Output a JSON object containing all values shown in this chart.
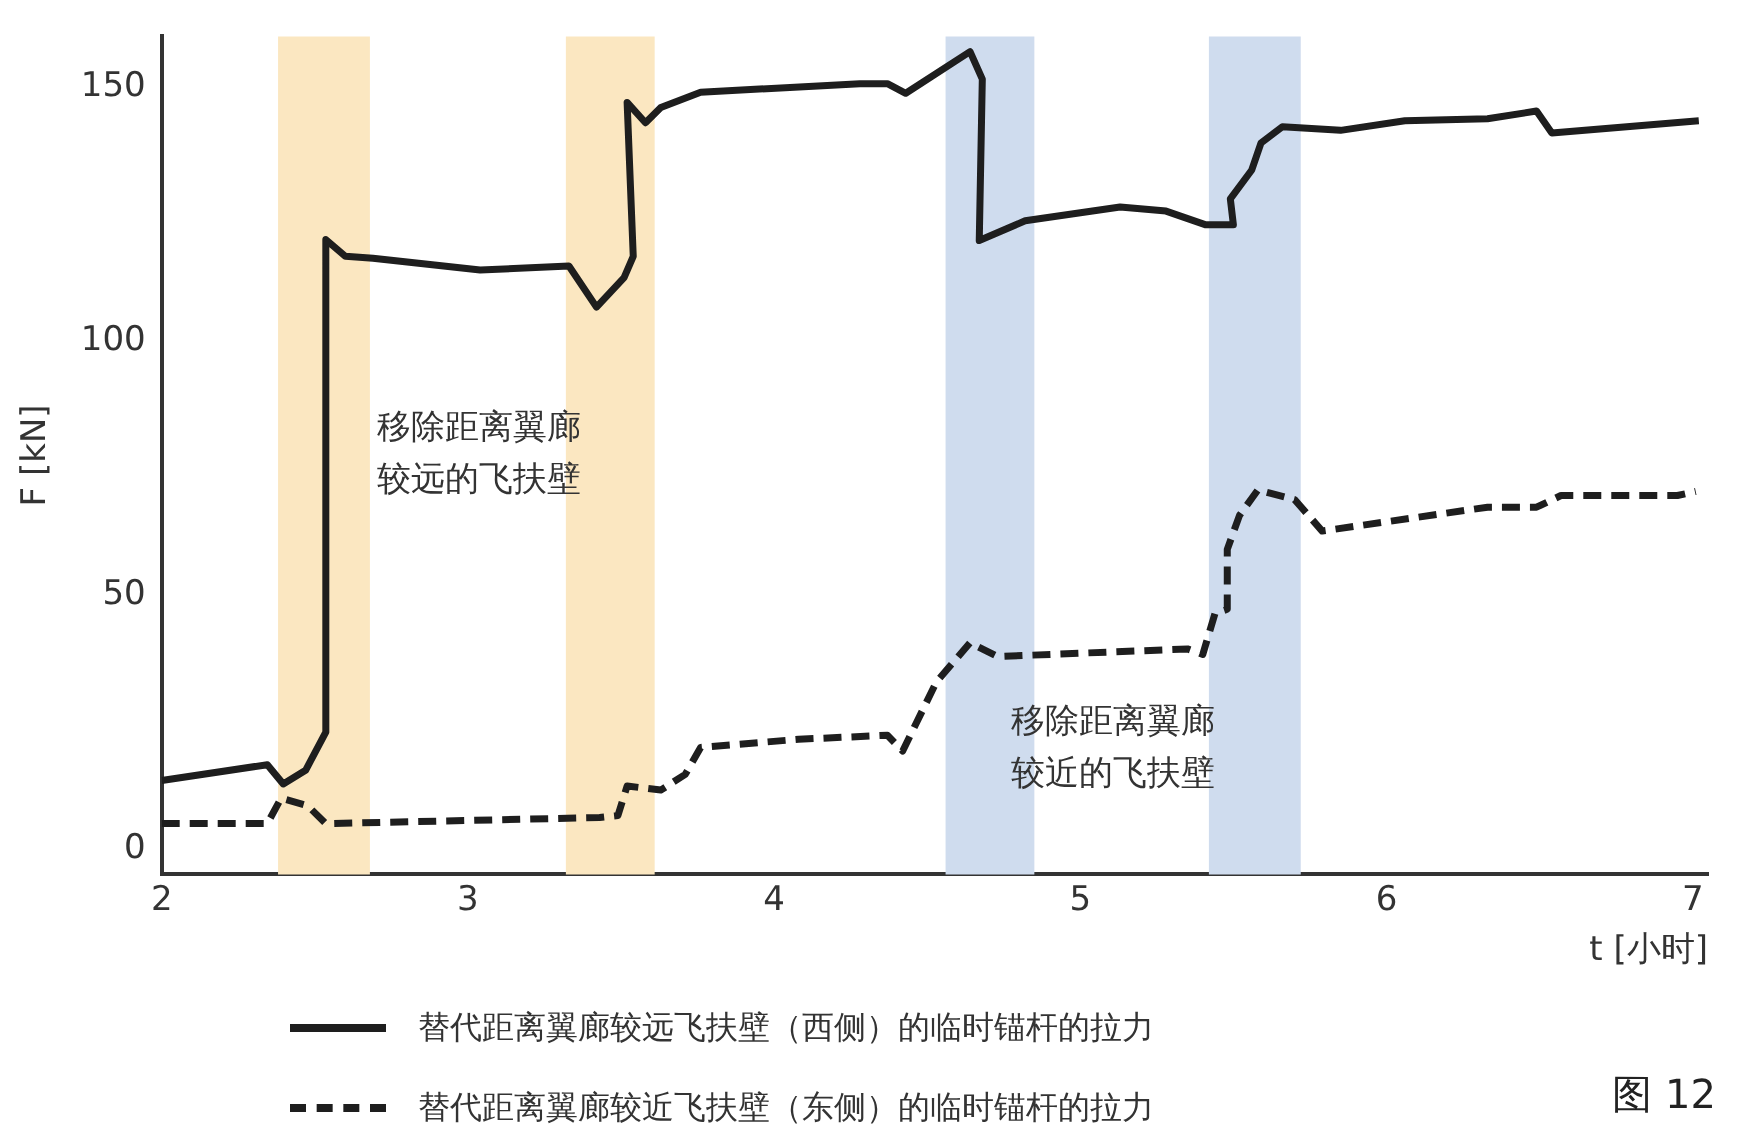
{
  "chart_data": {
    "type": "line",
    "xlabel": "t [小时]",
    "ylabel": "F [kN]",
    "xlim": [
      2,
      7.05
    ],
    "xticks": [
      2,
      3,
      4,
      5,
      6,
      7
    ],
    "ylim": [
      -5,
      160
    ],
    "yticks": [
      0,
      50,
      100,
      150
    ],
    "grid": false,
    "legend": "bottom",
    "marker": "none",
    "series": [
      {
        "name": "替代距离翼廊较远飞扶壁（西侧）的临时锚杆的拉力",
        "color": "#1e1e1e",
        "line_style": "solid",
        "x": [
          2,
          2.345,
          2.397,
          2.47,
          2.536,
          2.536,
          2.6,
          2.69,
          3.04,
          3.33,
          3.42,
          3.51,
          3.54,
          3.52,
          3.58,
          3.63,
          3.76,
          4.28,
          4.37,
          4.43,
          4.64,
          4.68,
          4.67,
          4.82,
          5.13,
          5.28,
          5.41,
          5.5,
          5.49,
          5.56,
          5.59,
          5.66,
          5.85,
          6.06,
          6.33,
          6.49,
          6.54,
          7.02
        ],
        "values": [
          13.5,
          16.6,
          12.8,
          15.5,
          23,
          120,
          116.7,
          116.3,
          114,
          114.8,
          106.7,
          112.5,
          116.7,
          147,
          143,
          146,
          149,
          150.7,
          150.7,
          148.8,
          157,
          151.6,
          119.8,
          123.7,
          126.4,
          125.6,
          122.9,
          122.9,
          128,
          133.7,
          139,
          142.2,
          141.5,
          143.4,
          143.8,
          145.3,
          141,
          143.4
        ]
      },
      {
        "name": "替代距离翼廊较近飞扶壁（东侧）的临时锚杆的拉力",
        "color": "#1e1e1e",
        "line_style": "dashed",
        "x": [
          2,
          2.345,
          2.39,
          2.477,
          2.536,
          3.43,
          3.49,
          3.52,
          3.63,
          3.71,
          3.76,
          4.08,
          4.37,
          4.42,
          4.53,
          4.64,
          4.73,
          5.35,
          5.4,
          5.44,
          5.48,
          5.48,
          5.52,
          5.58,
          5.7,
          5.79,
          6.33,
          6.49,
          6.57,
          6.95,
          7.01
        ],
        "values": [
          5,
          5,
          10,
          8.5,
          5,
          6.2,
          6.6,
          12.4,
          11.6,
          14.7,
          20,
          21.6,
          22.4,
          19.3,
          32.9,
          40.6,
          37.9,
          39.4,
          38.3,
          46.4,
          47.2,
          59,
          65.7,
          70.7,
          68.8,
          62.6,
          67.3,
          67.3,
          69.6,
          69.6,
          70.4
        ]
      }
    ],
    "bands": [
      {
        "axis": "x",
        "from": 2.38,
        "to": 2.68,
        "color": "#fbe7c1"
      },
      {
        "axis": "x",
        "from": 3.32,
        "to": 3.61,
        "color": "#fbe7c1"
      },
      {
        "axis": "x",
        "from": 4.56,
        "to": 4.85,
        "color": "#cfdcee"
      },
      {
        "axis": "x",
        "from": 5.42,
        "to": 5.72,
        "color": "#cfdcee"
      }
    ],
    "annotations": [
      "移除距离翼廊较远的飞扶壁",
      "移除距离翼廊较近的飞扶壁",
      "图 12"
    ]
  }
}
